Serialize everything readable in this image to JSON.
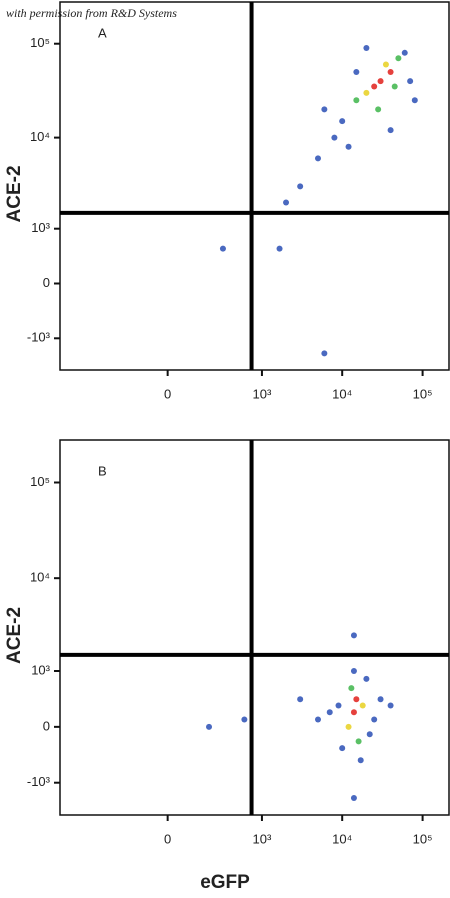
{
  "watermark": "with permission from R&D Systems",
  "chart_data": [
    {
      "type": "scatter",
      "panel": "A",
      "ylabel": "ACE-2",
      "xscale": "biexponential",
      "yscale": "biexponential",
      "xlim": [
        -1470,
        213000
      ],
      "ylim": [
        -2300,
        278000
      ],
      "xticks": [
        0,
        {
          "value": 1000,
          "label": "10³"
        },
        {
          "value": 10000,
          "label": "10⁴"
        },
        {
          "value": 100000,
          "label": "10⁵"
        }
      ],
      "yticks": [
        {
          "value": -1000,
          "label": "-10³"
        },
        0,
        {
          "value": 1000,
          "label": "10³"
        },
        {
          "value": 10000,
          "label": "10⁴"
        },
        {
          "value": 100000,
          "label": "10⁵"
        }
      ],
      "quadrant_x": 740,
      "quadrant_y": 1530,
      "x": [
        30000,
        25000,
        40000,
        20000,
        35000,
        45000,
        15000,
        50000,
        28000,
        10000,
        8000,
        60000,
        70000,
        5000,
        12000,
        3000,
        20000,
        80000,
        6000,
        2000,
        40000,
        15000,
        315,
        1660,
        6000
      ],
      "y": [
        40000,
        35000,
        50000,
        30000,
        60000,
        35000,
        25000,
        70000,
        20000,
        15000,
        10000,
        80000,
        40000,
        6000,
        8000,
        3000,
        90000,
        25000,
        20000,
        2000,
        12000,
        50000,
        540,
        540,
        -1500
      ],
      "colors": [
        "#e0201b",
        "#e0201b",
        "#e0201b",
        "#e8d020",
        "#e8d020",
        "#3db54a",
        "#3db54a",
        "#3db54a",
        "#3db54a",
        "#2a4fb5",
        "#2a4fb5",
        "#2a4fb5",
        "#2a4fb5",
        "#2a4fb5",
        "#2a4fb5",
        "#2a4fb5",
        "#2a4fb5",
        "#2a4fb5",
        "#2a4fb5",
        "#2a4fb5",
        "#2a4fb5",
        "#2a4fb5",
        "#2a4fb5",
        "#2a4fb5",
        "#2a4fb5"
      ]
    },
    {
      "type": "scatter",
      "panel": "B",
      "ylabel": "ACE-2",
      "xlabel": "eGFP",
      "xscale": "biexponential",
      "yscale": "biexponential",
      "xlim": [
        -1470,
        213000
      ],
      "ylim": [
        -2300,
        278000
      ],
      "xticks": [
        0,
        {
          "value": 1000,
          "label": "10³"
        },
        {
          "value": 10000,
          "label": "10⁴"
        },
        {
          "value": 100000,
          "label": "10⁵"
        }
      ],
      "yticks": [
        {
          "value": -1000,
          "label": "-10³"
        },
        0,
        {
          "value": 1000,
          "label": "10³"
        },
        {
          "value": 10000,
          "label": "10⁴"
        },
        {
          "value": 100000,
          "label": "10⁵"
        }
      ],
      "quadrant_x": 740,
      "quadrant_y": 1530,
      "x": [
        14000,
        15000,
        12000,
        18000,
        16000,
        13000,
        9000,
        25000,
        20000,
        10000,
        30000,
        7000,
        14000,
        17000,
        5000,
        22000,
        40000,
        3000,
        200,
        600,
        14000,
        14000
      ],
      "y": [
        200,
        400,
        0,
        300,
        -200,
        600,
        300,
        100,
        800,
        -300,
        400,
        200,
        1000,
        -500,
        100,
        -100,
        300,
        400,
        0,
        100,
        2500,
        -1500
      ],
      "colors": [
        "#e0201b",
        "#e0201b",
        "#e8d020",
        "#e8d020",
        "#3db54a",
        "#3db54a",
        "#2a4fb5",
        "#2a4fb5",
        "#2a4fb5",
        "#2a4fb5",
        "#2a4fb5",
        "#2a4fb5",
        "#2a4fb5",
        "#2a4fb5",
        "#2a4fb5",
        "#2a4fb5",
        "#2a4fb5",
        "#2a4fb5",
        "#2a4fb5",
        "#2a4fb5",
        "#2a4fb5",
        "#2a4fb5"
      ]
    }
  ]
}
